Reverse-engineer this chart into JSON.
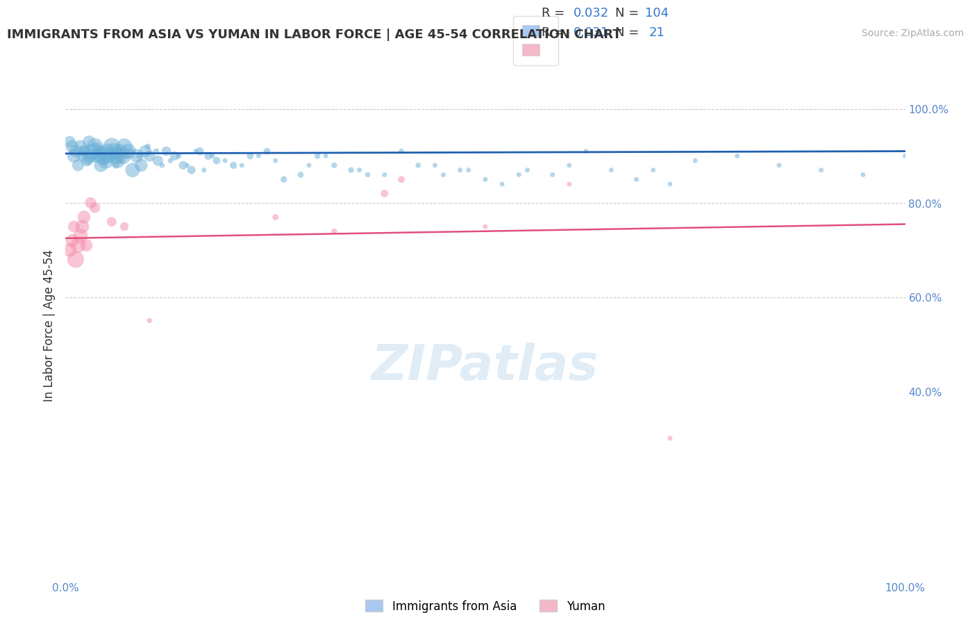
{
  "title": "IMMIGRANTS FROM ASIA VS YUMAN IN LABOR FORCE | AGE 45-54 CORRELATION CHART",
  "source_text": "Source: ZipAtlas.com",
  "xlabel": "",
  "ylabel": "In Labor Force | Age 45-54",
  "xlim": [
    0,
    1.0
  ],
  "ylim": [
    0,
    1.0
  ],
  "x_tick_labels": [
    "0.0%",
    "100.0%"
  ],
  "y_tick_labels": [
    "",
    "80.0%",
    "60.0%",
    "100.0%",
    "40.0%"
  ],
  "legend_entries": [
    {
      "label": "Immigrants from Asia",
      "color": "#a8c8f0",
      "R": "0.032",
      "N": "104"
    },
    {
      "label": "Yuman",
      "color": "#f5b8c8",
      "R": "0.031",
      "N": "21"
    }
  ],
  "blue_scatter_x": [
    0.01,
    0.015,
    0.018,
    0.022,
    0.025,
    0.028,
    0.03,
    0.032,
    0.035,
    0.038,
    0.04,
    0.042,
    0.045,
    0.048,
    0.05,
    0.052,
    0.055,
    0.058,
    0.06,
    0.062,
    0.065,
    0.068,
    0.07,
    0.075,
    0.08,
    0.085,
    0.09,
    0.095,
    0.1,
    0.11,
    0.12,
    0.13,
    0.14,
    0.15,
    0.16,
    0.17,
    0.18,
    0.2,
    0.22,
    0.24,
    0.26,
    0.28,
    0.3,
    0.32,
    0.34,
    0.36,
    0.4,
    0.42,
    0.45,
    0.48,
    0.5,
    0.52,
    0.55,
    0.58,
    0.62,
    0.65,
    0.68,
    0.72,
    0.75,
    0.005,
    0.008,
    0.012,
    0.02,
    0.023,
    0.027,
    0.033,
    0.037,
    0.041,
    0.044,
    0.047,
    0.052,
    0.056,
    0.06,
    0.064,
    0.072,
    0.078,
    0.088,
    0.098,
    0.108,
    0.115,
    0.125,
    0.135,
    0.145,
    0.155,
    0.165,
    0.175,
    0.19,
    0.21,
    0.23,
    0.25,
    0.29,
    0.31,
    0.35,
    0.38,
    0.44,
    0.47,
    0.54,
    0.6,
    0.7,
    0.8,
    0.85,
    0.9,
    0.95,
    1.0
  ],
  "blue_scatter_y": [
    0.9,
    0.88,
    0.92,
    0.91,
    0.89,
    0.93,
    0.9,
    0.91,
    0.92,
    0.9,
    0.91,
    0.88,
    0.9,
    0.89,
    0.91,
    0.9,
    0.92,
    0.91,
    0.9,
    0.89,
    0.91,
    0.9,
    0.92,
    0.91,
    0.87,
    0.9,
    0.88,
    0.91,
    0.9,
    0.89,
    0.91,
    0.9,
    0.88,
    0.87,
    0.91,
    0.9,
    0.89,
    0.88,
    0.9,
    0.91,
    0.85,
    0.86,
    0.9,
    0.88,
    0.87,
    0.86,
    0.91,
    0.88,
    0.86,
    0.87,
    0.85,
    0.84,
    0.87,
    0.86,
    0.91,
    0.87,
    0.85,
    0.84,
    0.89,
    0.93,
    0.92,
    0.91,
    0.9,
    0.91,
    0.89,
    0.9,
    0.92,
    0.91,
    0.9,
    0.89,
    0.91,
    0.9,
    0.88,
    0.89,
    0.9,
    0.91,
    0.9,
    0.92,
    0.91,
    0.88,
    0.89,
    0.9,
    0.88,
    0.91,
    0.87,
    0.9,
    0.89,
    0.88,
    0.9,
    0.89,
    0.88,
    0.9,
    0.87,
    0.86,
    0.88,
    0.87,
    0.86,
    0.88,
    0.87,
    0.9,
    0.88,
    0.87,
    0.86,
    0.9
  ],
  "blue_scatter_sizes": [
    200,
    150,
    180,
    160,
    140,
    170,
    200,
    250,
    300,
    220,
    180,
    200,
    350,
    280,
    250,
    200,
    320,
    280,
    260,
    240,
    220,
    300,
    280,
    250,
    230,
    200,
    180,
    160,
    140,
    120,
    100,
    90,
    80,
    75,
    70,
    65,
    60,
    55,
    50,
    50,
    45,
    40,
    40,
    35,
    35,
    30,
    30,
    30,
    25,
    25,
    25,
    25,
    25,
    25,
    25,
    25,
    25,
    25,
    25,
    150,
    180,
    160,
    140,
    120,
    100,
    90,
    80,
    75,
    70,
    65,
    60,
    55,
    50,
    50,
    45,
    40,
    40,
    35,
    35,
    30,
    30,
    30,
    25,
    25,
    25,
    25,
    25,
    25,
    25,
    25,
    25,
    25,
    25,
    25,
    25,
    25,
    25,
    25,
    25,
    25,
    25,
    25,
    25,
    25
  ],
  "pink_scatter_x": [
    0.005,
    0.008,
    0.01,
    0.012,
    0.015,
    0.018,
    0.02,
    0.022,
    0.025,
    0.03,
    0.035,
    0.055,
    0.07,
    0.38,
    0.4,
    0.25,
    0.32,
    0.1,
    0.5,
    0.6,
    0.72
  ],
  "pink_scatter_y": [
    0.7,
    0.72,
    0.75,
    0.68,
    0.71,
    0.73,
    0.75,
    0.77,
    0.71,
    0.8,
    0.79,
    0.76,
    0.75,
    0.82,
    0.85,
    0.77,
    0.74,
    0.55,
    0.75,
    0.84,
    0.3
  ],
  "pink_scatter_sizes": [
    200,
    180,
    150,
    300,
    250,
    220,
    200,
    180,
    160,
    140,
    120,
    100,
    80,
    60,
    50,
    40,
    35,
    30,
    25,
    25,
    25
  ],
  "blue_line_x": [
    0.0,
    1.0
  ],
  "blue_line_y": [
    0.905,
    0.91
  ],
  "pink_line_x": [
    0.0,
    1.0
  ],
  "pink_line_y": [
    0.725,
    0.755
  ],
  "watermark": "ZIPatlas",
  "bg_color": "#ffffff",
  "scatter_alpha": 0.5,
  "blue_color": "#6aafd6",
  "pink_color": "#f48bab",
  "blue_line_color": "#2060b0",
  "pink_line_color": "#e0507a",
  "grid_color": "#cccccc",
  "axis_label_color": "#5588cc"
}
